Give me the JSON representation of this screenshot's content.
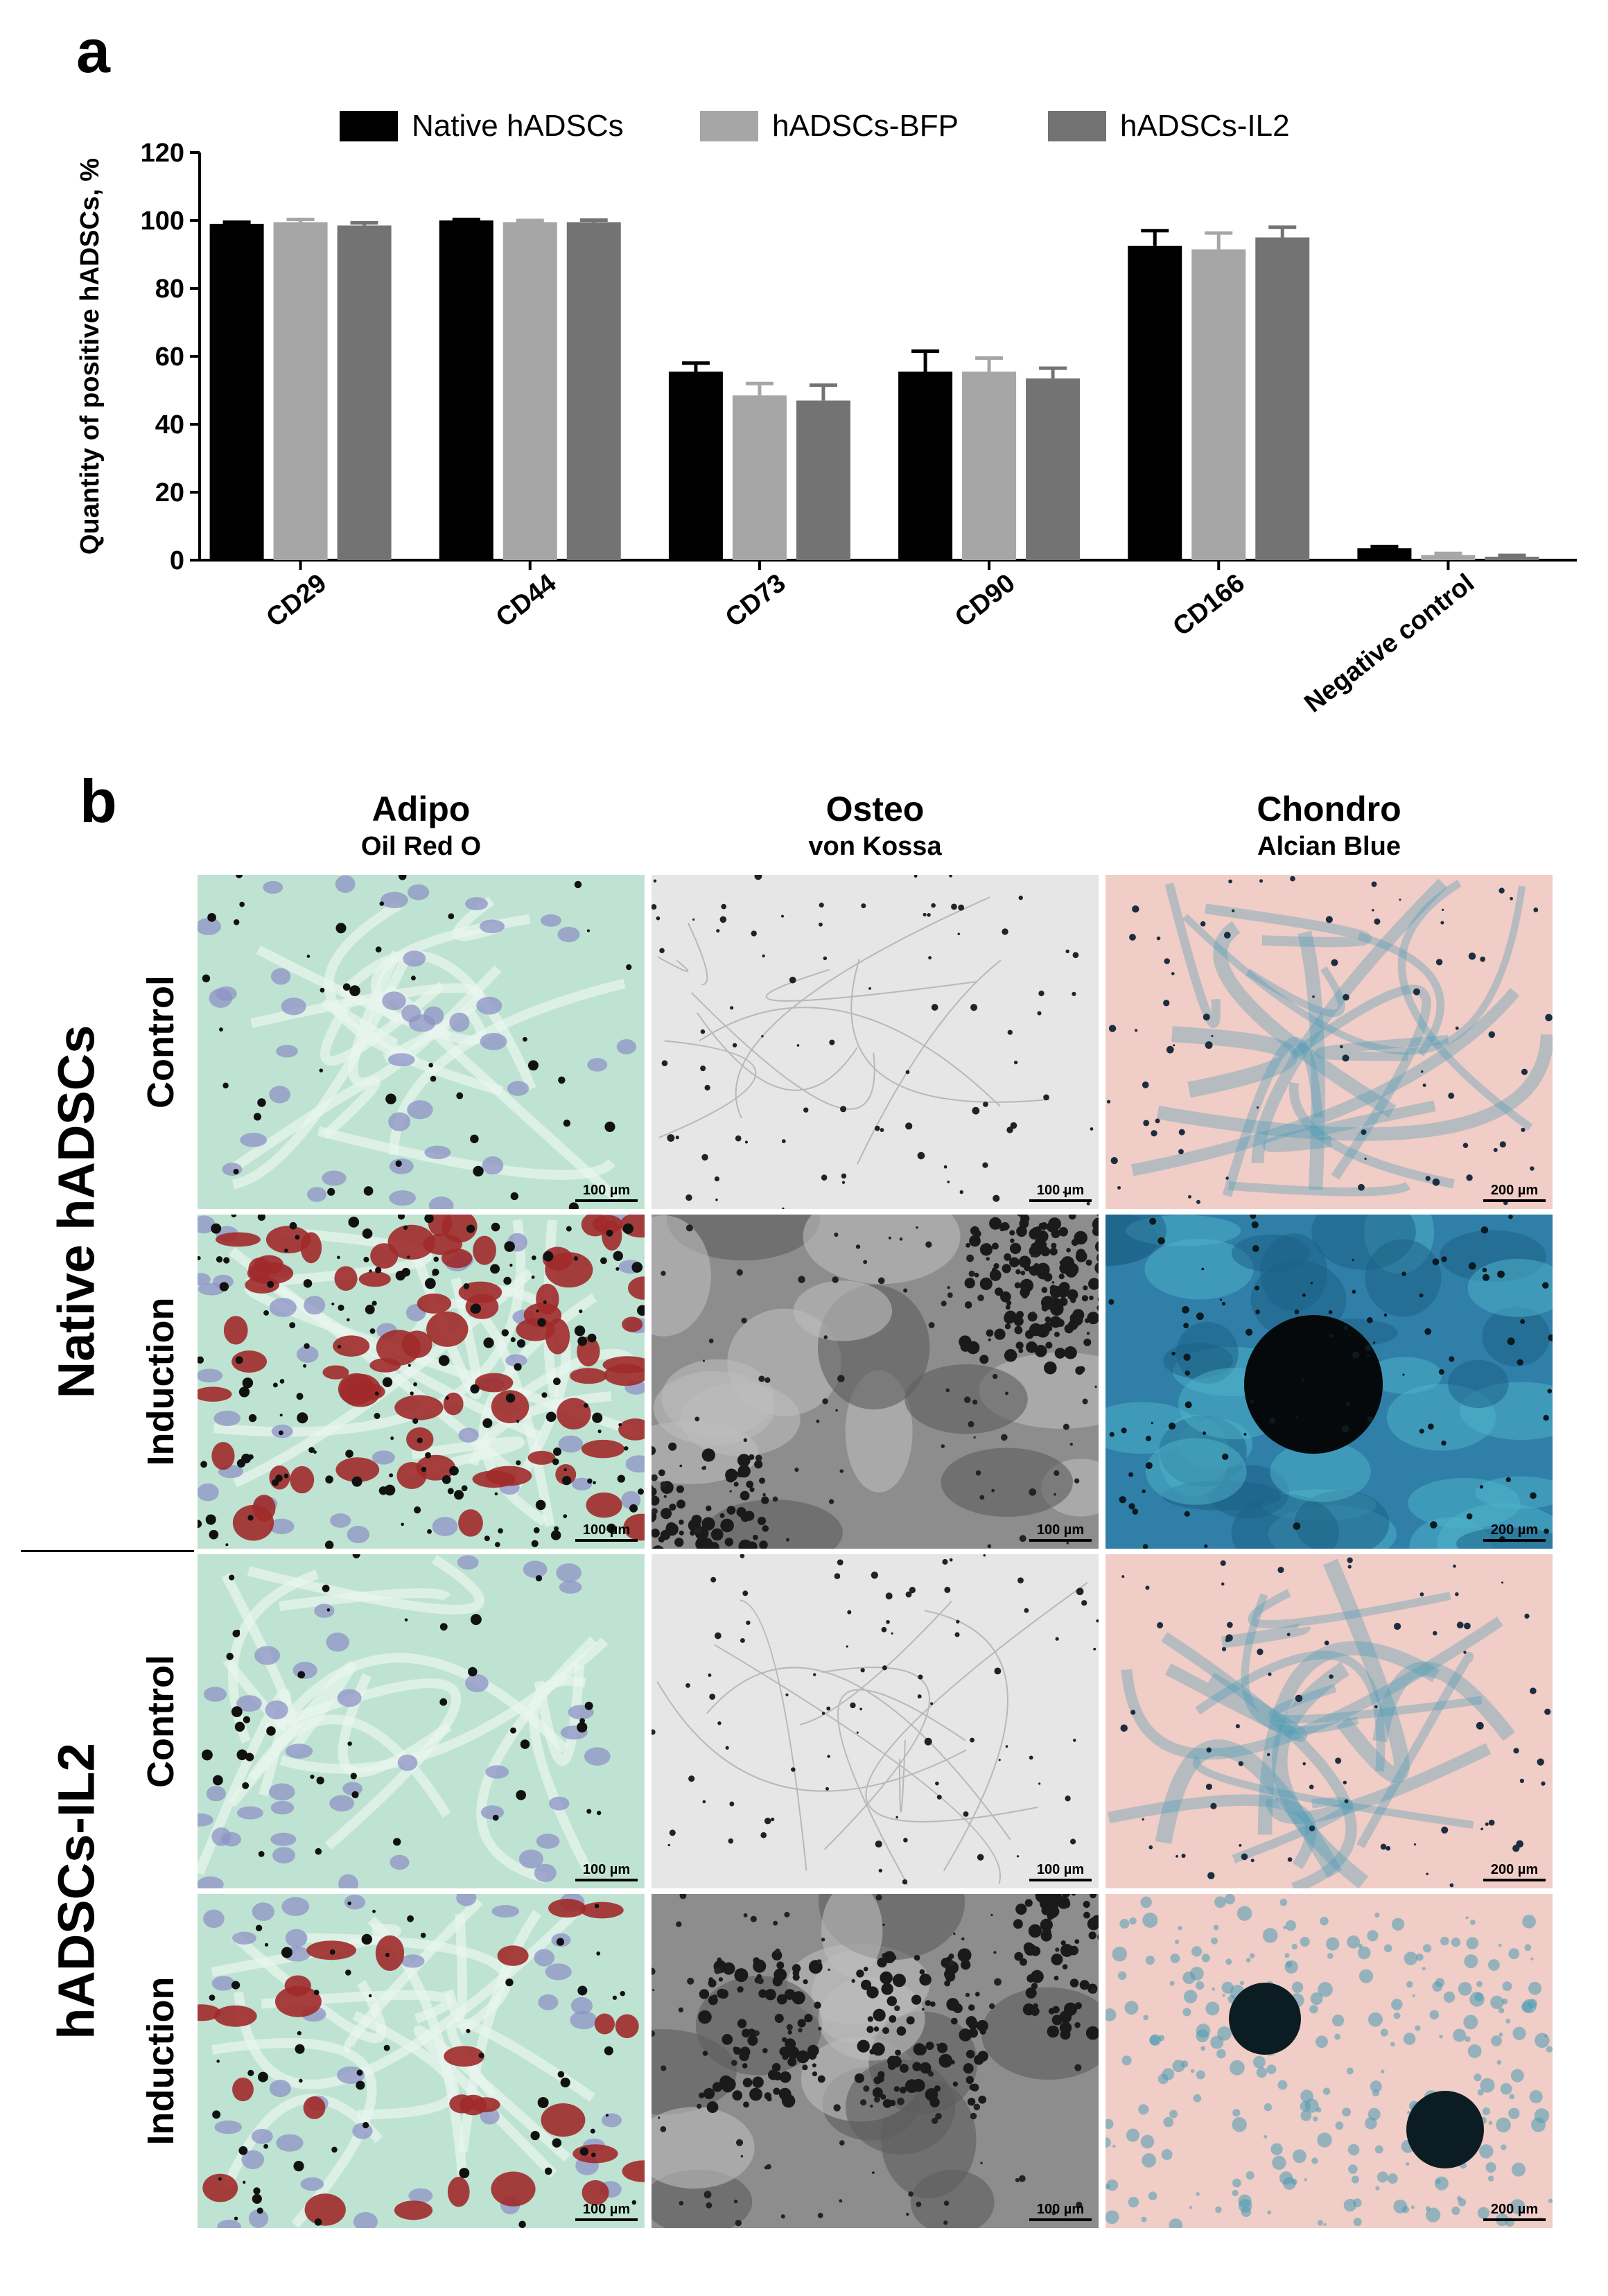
{
  "panel_a": {
    "letter": "a"
  },
  "panel_b": {
    "letter": "b"
  },
  "chart_data": {
    "type": "bar",
    "title": "",
    "xlabel": "",
    "ylabel": "Quantity of positive hADSCs, %",
    "ylim": [
      0,
      120
    ],
    "yticks": [
      "0",
      "20",
      "40",
      "60",
      "80",
      "100",
      "120"
    ],
    "categories": [
      "CD29",
      "CD44",
      "CD73",
      "CD90",
      "CD166",
      "Negative control"
    ],
    "series": [
      {
        "name": "Native hADSCs",
        "color": "#000000",
        "values": [
          99,
          100,
          55.5,
          55.5,
          92.5,
          3.5
        ],
        "errors": [
          0.5,
          0.3,
          2.5,
          6,
          4.5,
          0.5
        ]
      },
      {
        "name": "hADSCs-BFP",
        "color": "#a6a6a6",
        "values": [
          99.5,
          99.5,
          48.5,
          55.5,
          91.5,
          1.5
        ],
        "errors": [
          0.8,
          0.5,
          3.5,
          4,
          4.8,
          0.5
        ]
      },
      {
        "name": "hADSCs-IL2",
        "color": "#737373",
        "values": [
          98.5,
          99.5,
          47,
          53.5,
          95,
          1
        ],
        "errors": [
          0.8,
          0.6,
          4.5,
          3,
          3,
          0.4
        ]
      }
    ],
    "legend_position": "top",
    "grid": false,
    "error_bars": true
  },
  "stain_grid": {
    "columns": [
      {
        "title": "Adipo",
        "subtitle": "Oil Red O"
      },
      {
        "title": "Osteo",
        "subtitle": "von Kossa"
      },
      {
        "title": "Chondro",
        "subtitle": "Alcian Blue"
      }
    ],
    "groups": [
      {
        "label": "Native hADSCs",
        "rows": [
          "Control",
          "Induction"
        ]
      },
      {
        "label": "hADSCs-IL2",
        "rows": [
          "Control",
          "Induction"
        ]
      }
    ],
    "scale_bars": [
      [
        "100 µm",
        "100 µm",
        "200 µm"
      ],
      [
        "100 µm",
        "100 µm",
        "200 µm"
      ],
      [
        "100 µm",
        "100 µm",
        "200 µm"
      ],
      [
        "100 µm",
        "100 µm",
        "200 µm"
      ]
    ],
    "tile_colors": {
      "adipo_bg": "#bfe3d2",
      "adipo_nucleus": "#8e93c6",
      "adipo_lipid": "#a02a2a",
      "osteo_bg": "#e6e6e6",
      "osteo_dark": "#1a1a1a",
      "chondro_bg": "#f0cdc6",
      "chondro_blue": "#4a9cb5",
      "chondro_nodule": "#0b1d22"
    }
  }
}
